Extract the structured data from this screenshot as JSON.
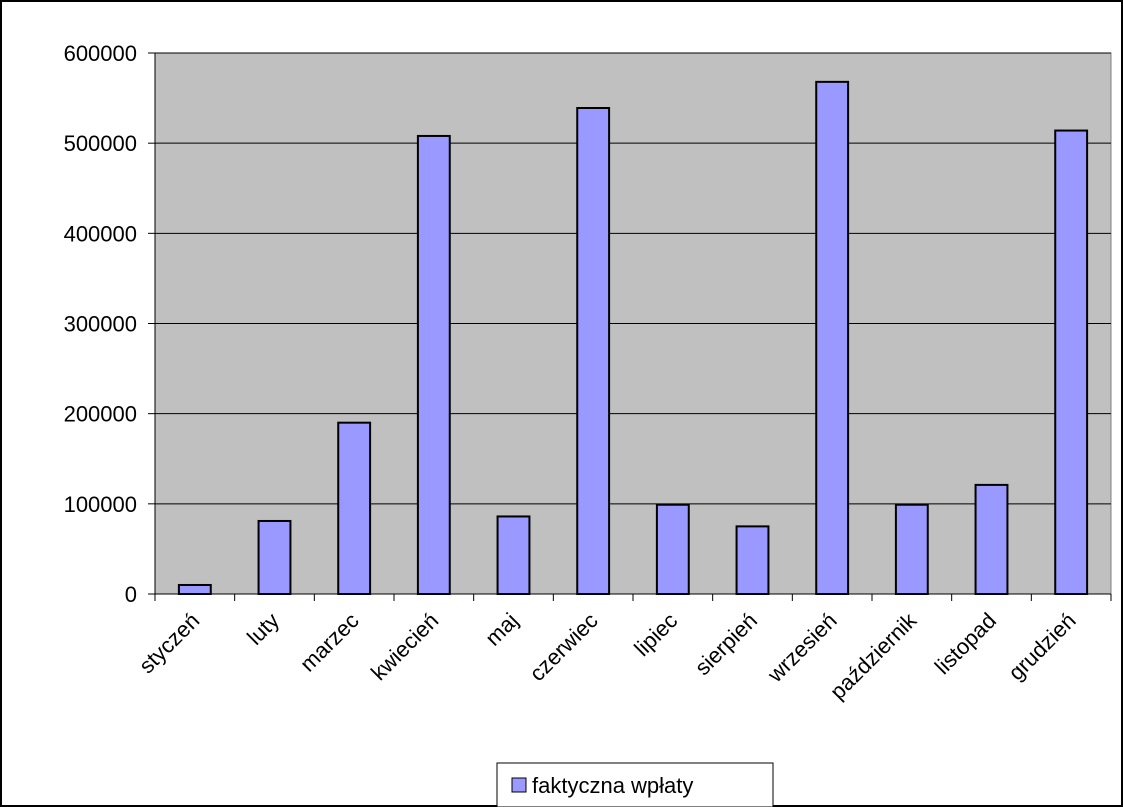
{
  "colors": {
    "plot_background": "#c0c0c0",
    "bar_fill": "#9999ff",
    "bar_stroke": "#000000",
    "gridline": "#000000"
  },
  "chart_data": {
    "type": "bar",
    "title": "",
    "xlabel": "",
    "ylabel": "",
    "ylim": [
      0,
      600000
    ],
    "yticks": [
      0,
      100000,
      200000,
      300000,
      400000,
      500000,
      600000
    ],
    "ytick_labels": [
      "0",
      "100000",
      "200000",
      "300000",
      "400000",
      "500000",
      "600000"
    ],
    "grid": true,
    "legend_position": "bottom",
    "categories": [
      "styczeń",
      "luty",
      "marzec",
      "kwiecień",
      "maj",
      "czerwiec",
      "lipiec",
      "sierpień",
      "wrzesień",
      "październik",
      "listopad",
      "grudzień"
    ],
    "series": [
      {
        "name": "faktyczna wpłaty",
        "values": [
          10000,
          81000,
          190000,
          508000,
          86000,
          539000,
          99000,
          75000,
          568000,
          99000,
          121000,
          514000
        ]
      }
    ]
  }
}
